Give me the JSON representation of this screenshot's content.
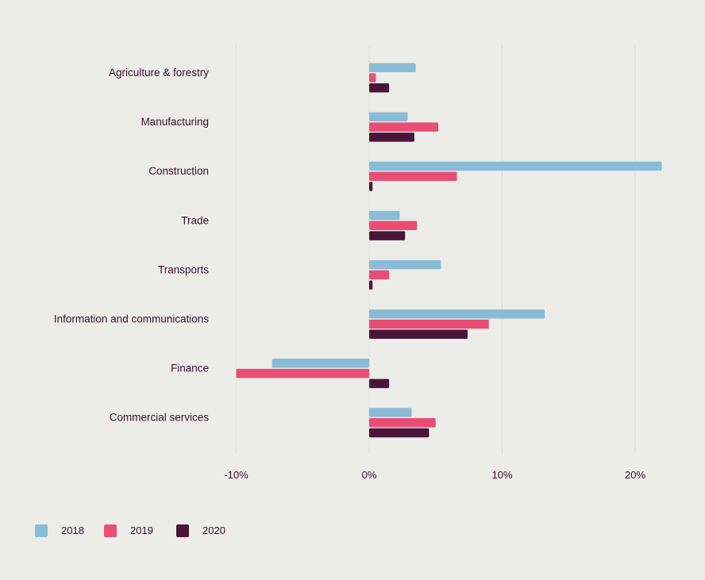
{
  "chart_data": {
    "type": "bar",
    "orientation": "horizontal",
    "categories": [
      "Agriculture & forestry",
      "Manufacturing",
      "Construction",
      "Trade",
      "Transports",
      "Information and communications",
      "Finance",
      "Commercial services"
    ],
    "series": [
      {
        "name": "2018",
        "color": "#8ABCD8",
        "values": [
          3.5,
          2.9,
          22.0,
          2.3,
          5.4,
          13.2,
          -7.3,
          3.2
        ]
      },
      {
        "name": "2019",
        "color": "#E94D76",
        "values": [
          0.5,
          5.2,
          6.6,
          3.6,
          1.5,
          9.0,
          -10.0,
          5.0
        ]
      },
      {
        "name": "2020",
        "color": "#4A1538",
        "values": [
          1.5,
          3.4,
          0.25,
          2.7,
          0.25,
          7.4,
          1.5,
          4.5
        ]
      }
    ],
    "xlim": [
      -10,
      22
    ],
    "xticks": [
      -10,
      0,
      10,
      20
    ],
    "xtick_labels": [
      "-10%",
      "0%",
      "10%",
      "20%"
    ],
    "title": "",
    "xlabel": "",
    "ylabel": "",
    "grid": true,
    "legend_position": "bottom-left"
  }
}
